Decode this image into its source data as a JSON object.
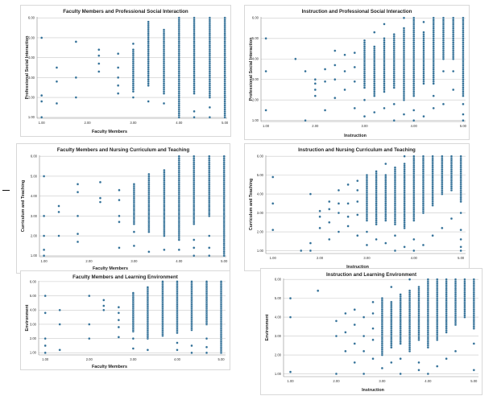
{
  "chart_data": [
    {
      "type": "scatter",
      "title": "Faculty Members and Professional Social Interaction",
      "xlabel": "Faculty Members",
      "ylabel": "Professional Social Interaction",
      "xlim": [
        0.9,
        5.05
      ],
      "ylim": [
        0.95,
        6.05
      ],
      "xticks": [
        "1.00",
        "2.00",
        "3.00",
        "4.00",
        "5.00"
      ],
      "yticks": [
        "1.00",
        "2.00",
        "3.00",
        "4.00",
        "5.00",
        "6.00"
      ],
      "columns": [
        {
          "x": 1.0,
          "y": [
            1.0,
            1.8,
            2.1,
            5.0
          ]
        },
        {
          "x": 1.33,
          "y": [
            1.7,
            2.8,
            3.5
          ]
        },
        {
          "x": 1.75,
          "y": [
            2.0,
            3.0,
            4.8
          ]
        },
        {
          "x": 2.25,
          "y": [
            3.3,
            3.7,
            4.1,
            4.4
          ]
        },
        {
          "x": 2.67,
          "y": [
            2.2,
            2.6,
            3.0,
            3.5,
            4.2
          ]
        },
        {
          "x": 3.0,
          "y": [
            2.0,
            4.7
          ],
          "range": [
            2.3,
            4.4
          ]
        },
        {
          "x": 3.33,
          "y": [
            1.8
          ],
          "range": [
            2.6,
            5.8
          ]
        },
        {
          "x": 3.67,
          "y": [
            1.7
          ],
          "range": [
            2.2,
            5.4
          ]
        },
        {
          "x": 4.0,
          "y": [],
          "range": [
            1.0,
            6.0
          ]
        },
        {
          "x": 4.33,
          "y": [
            1.0,
            1.3
          ],
          "range": [
            2.2,
            6.0
          ]
        },
        {
          "x": 4.67,
          "y": [
            1.0,
            1.5
          ],
          "range": [
            2.0,
            6.0
          ]
        },
        {
          "x": 5.0,
          "y": [],
          "range": [
            1.0,
            6.0
          ]
        }
      ]
    },
    {
      "type": "scatter",
      "title": "Instruction and Professional Social Interaction",
      "xlabel": "Instruction",
      "ylabel": "Professional Social Interaction",
      "xlim": [
        0.9,
        5.05
      ],
      "ylim": [
        0.95,
        6.05
      ],
      "xticks": [
        "1.00",
        "2.00",
        "3.00",
        "4.00",
        "5.00"
      ],
      "yticks": [
        "1.00",
        "2.00",
        "3.00",
        "4.00",
        "5.00",
        "6.00"
      ],
      "columns": [
        {
          "x": 1.0,
          "y": [
            1.5,
            3.4,
            5.0
          ]
        },
        {
          "x": 1.6,
          "y": [
            4.0
          ]
        },
        {
          "x": 1.8,
          "y": [
            1.0,
            3.4
          ]
        },
        {
          "x": 2.0,
          "y": [
            2.2,
            2.5,
            2.8,
            3.0
          ]
        },
        {
          "x": 2.2,
          "y": [
            1.5,
            2.9,
            3.5
          ]
        },
        {
          "x": 2.4,
          "y": [
            2.1,
            3.0,
            3.7,
            4.4
          ]
        },
        {
          "x": 2.6,
          "y": [
            2.5,
            3.4,
            4.2
          ]
        },
        {
          "x": 2.8,
          "y": [
            1.6,
            2.9,
            3.6,
            4.3
          ]
        },
        {
          "x": 3.0,
          "y": [
            1.2,
            2.0
          ],
          "range": [
            2.6,
            4.9
          ]
        },
        {
          "x": 3.2,
          "y": [
            1.4,
            5.3
          ],
          "range": [
            2.2,
            4.6
          ]
        },
        {
          "x": 3.4,
          "y": [
            1.6,
            5.7
          ],
          "range": [
            2.4,
            5.0
          ]
        },
        {
          "x": 3.6,
          "y": [
            1.0,
            1.8
          ],
          "range": [
            2.6,
            5.2
          ]
        },
        {
          "x": 3.8,
          "y": [
            1.3,
            6.0
          ],
          "range": [
            2.0,
            5.5
          ]
        },
        {
          "x": 4.0,
          "y": [
            1.0,
            1.5
          ],
          "range": [
            2.2,
            6.0
          ]
        },
        {
          "x": 4.2,
          "y": [
            1.2,
            5.8
          ],
          "range": [
            2.8,
            5.3
          ]
        },
        {
          "x": 4.4,
          "y": [
            1.6,
            2.2
          ],
          "range": [
            2.8,
            6.0
          ]
        },
        {
          "x": 4.6,
          "y": [
            1.8,
            3.4
          ],
          "range": [
            4.0,
            6.0
          ]
        },
        {
          "x": 4.8,
          "y": [
            2.5,
            3.4
          ],
          "range": [
            4.0,
            6.0
          ]
        },
        {
          "x": 5.0,
          "y": [
            1.0,
            1.3,
            1.8
          ],
          "range": [
            2.2,
            6.0
          ]
        }
      ]
    },
    {
      "type": "scatter",
      "title": "Faculty Members and Nursing Curriculum and Teaching",
      "xlabel": "Faculty Members",
      "ylabel": "Curriculum and Teaching",
      "xlim": [
        0.9,
        5.05
      ],
      "ylim": [
        0.95,
        6.05
      ],
      "xticks": [
        "1.00",
        "2.00",
        "3.00",
        "4.00",
        "5.00"
      ],
      "yticks": [
        "1.00",
        "2.00",
        "3.00",
        "4.00",
        "5.00",
        "6.00"
      ],
      "columns": [
        {
          "x": 1.0,
          "y": [
            1.0,
            1.3,
            2.0,
            3.0,
            5.0
          ]
        },
        {
          "x": 1.33,
          "y": [
            2.0,
            3.2,
            3.5
          ]
        },
        {
          "x": 1.75,
          "y": [
            1.7,
            2.1,
            3.0,
            4.2,
            4.6
          ]
        },
        {
          "x": 2.25,
          "y": [
            3.7,
            3.9,
            4.7
          ]
        },
        {
          "x": 2.67,
          "y": [
            1.4,
            2.7,
            3.0,
            3.8,
            4.3
          ]
        },
        {
          "x": 3.0,
          "y": [
            1.5,
            2.2
          ],
          "range": [
            2.6,
            4.6
          ]
        },
        {
          "x": 3.33,
          "y": [
            1.2
          ],
          "range": [
            2.2,
            5.1
          ]
        },
        {
          "x": 3.67,
          "y": [
            1.3
          ],
          "range": [
            2.0,
            5.3
          ]
        },
        {
          "x": 4.0,
          "y": [
            1.3
          ],
          "range": [
            1.8,
            6.0
          ]
        },
        {
          "x": 4.33,
          "y": [
            1.0,
            1.4,
            1.8
          ],
          "range": [
            2.6,
            6.0
          ]
        },
        {
          "x": 4.67,
          "y": [
            1.0,
            1.4,
            2.0
          ],
          "range": [
            3.0,
            6.0
          ]
        },
        {
          "x": 5.0,
          "y": [],
          "range": [
            1.0,
            6.0
          ]
        }
      ]
    },
    {
      "type": "scatter",
      "title": "Instruction and Nursing Curriculum and Teaching",
      "xlabel": "Instruction",
      "ylabel": "Curriculum and Teaching",
      "xlim": [
        0.85,
        5.1
      ],
      "ylim": [
        0.85,
        6.05
      ],
      "xticks": [
        "1.00",
        "2.00",
        "3.00",
        "4.00",
        "5.00"
      ],
      "yticks": [
        "1.00",
        "2.00",
        "3.00",
        "4.00",
        "5.00",
        "6.00"
      ],
      "columns": [
        {
          "x": 1.0,
          "y": [
            2.1,
            3.5,
            4.9
          ]
        },
        {
          "x": 1.6,
          "y": [
            1.0
          ]
        },
        {
          "x": 1.8,
          "y": [
            1.0,
            1.4,
            4.0
          ]
        },
        {
          "x": 2.0,
          "y": [
            2.2,
            2.8,
            3.1
          ]
        },
        {
          "x": 2.2,
          "y": [
            1.6,
            2.5,
            3.2,
            3.6
          ]
        },
        {
          "x": 2.4,
          "y": [
            2.0,
            3.0,
            3.5,
            4.2
          ]
        },
        {
          "x": 2.6,
          "y": [
            2.3,
            2.8,
            3.5,
            4.5
          ]
        },
        {
          "x": 2.8,
          "y": [
            1.8,
            2.9,
            3.6,
            4.2,
            4.7
          ]
        },
        {
          "x": 3.0,
          "y": [
            1.3,
            2.0
          ],
          "range": [
            2.6,
            5.0
          ]
        },
        {
          "x": 3.2,
          "y": [
            1.6
          ],
          "range": [
            2.4,
            5.2
          ]
        },
        {
          "x": 3.4,
          "y": [
            1.4,
            5.6
          ],
          "range": [
            2.6,
            5.0
          ]
        },
        {
          "x": 3.6,
          "y": [
            1.0,
            1.8
          ],
          "range": [
            2.4,
            5.4
          ]
        },
        {
          "x": 3.8,
          "y": [
            1.2,
            6.0
          ],
          "range": [
            2.2,
            5.6
          ]
        },
        {
          "x": 4.0,
          "y": [
            1.0,
            1.6
          ],
          "range": [
            2.6,
            6.0
          ]
        },
        {
          "x": 4.2,
          "y": [
            1.3
          ],
          "range": [
            3.0,
            6.0
          ]
        },
        {
          "x": 4.4,
          "y": [
            1.8
          ],
          "range": [
            3.4,
            6.0
          ]
        },
        {
          "x": 4.6,
          "y": [
            2.2
          ],
          "range": [
            4.0,
            6.0
          ]
        },
        {
          "x": 4.8,
          "y": [
            2.7
          ],
          "range": [
            4.2,
            6.0
          ]
        },
        {
          "x": 5.0,
          "y": [
            1.0,
            1.2,
            1.6,
            2.1,
            3.0
          ],
          "range": [
            3.6,
            6.0
          ]
        }
      ]
    },
    {
      "type": "scatter",
      "title": "Faculty Members and Learning Environment",
      "xlabel": "Faculty Members",
      "ylabel": "Environment",
      "xlim": [
        0.85,
        5.1
      ],
      "ylim": [
        0.85,
        6.05
      ],
      "xticks": [
        "1.00",
        "2.00",
        "3.00",
        "4.00",
        "5.00"
      ],
      "yticks": [
        "1.00",
        "2.00",
        "3.00",
        "4.00",
        "5.00",
        "6.00"
      ],
      "columns": [
        {
          "x": 1.0,
          "y": [
            1.0,
            1.5,
            2.0,
            3.8,
            5.0
          ]
        },
        {
          "x": 1.33,
          "y": [
            1.2,
            3.0,
            4.0
          ]
        },
        {
          "x": 2.0,
          "y": [
            2.0,
            3.0,
            5.0
          ]
        },
        {
          "x": 2.33,
          "y": [
            4.0,
            4.3,
            4.7
          ]
        },
        {
          "x": 2.67,
          "y": [
            2.1,
            2.8,
            3.3,
            3.8,
            4.2
          ]
        },
        {
          "x": 3.0,
          "y": [
            1.3,
            2.0
          ],
          "range": [
            2.5,
            5.2
          ]
        },
        {
          "x": 3.33,
          "y": [
            1.2
          ],
          "range": [
            2.0,
            5.6
          ]
        },
        {
          "x": 3.67,
          "y": [],
          "range": [
            2.2,
            6.0
          ]
        },
        {
          "x": 4.0,
          "y": [
            1.2,
            1.7
          ],
          "range": [
            2.4,
            6.0
          ]
        },
        {
          "x": 4.33,
          "y": [
            1.0,
            1.5
          ],
          "range": [
            2.6,
            6.0
          ]
        },
        {
          "x": 4.67,
          "y": [
            1.0,
            1.4,
            2.0
          ],
          "range": [
            3.0,
            6.0
          ]
        },
        {
          "x": 5.0,
          "y": [],
          "range": [
            1.0,
            6.0
          ]
        }
      ]
    },
    {
      "type": "scatter",
      "title": "Instruction and Learning Environment",
      "xlabel": "Instruction",
      "ylabel": "Environment",
      "xlim": [
        0.85,
        5.1
      ],
      "ylim": [
        0.85,
        6.05
      ],
      "xticks": [
        "1.00",
        "2.00",
        "3.00",
        "4.00",
        "5.00"
      ],
      "yticks": [
        "1.00",
        "2.00",
        "3.00",
        "4.00",
        "5.00",
        "6.00"
      ],
      "columns": [
        {
          "x": 1.0,
          "y": [
            1.1,
            4.0,
            5.0
          ]
        },
        {
          "x": 1.6,
          "y": [
            5.4
          ]
        },
        {
          "x": 2.0,
          "y": [
            1.0,
            3.0,
            3.8
          ]
        },
        {
          "x": 2.2,
          "y": [
            2.2,
            3.2,
            4.2
          ]
        },
        {
          "x": 2.4,
          "y": [
            1.6,
            2.6,
            3.6,
            4.4
          ]
        },
        {
          "x": 2.6,
          "y": [
            1.0,
            2.2,
            3.0,
            4.0
          ]
        },
        {
          "x": 2.8,
          "y": [
            1.8,
            2.8,
            3.4,
            4.2,
            4.8
          ]
        },
        {
          "x": 3.0,
          "y": [
            1.3
          ],
          "range": [
            2.0,
            5.0
          ]
        },
        {
          "x": 3.2,
          "y": [
            1.6,
            5.6
          ],
          "range": [
            2.4,
            4.8
          ]
        },
        {
          "x": 3.4,
          "y": [
            1.0,
            1.8
          ],
          "range": [
            2.6,
            5.2
          ]
        },
        {
          "x": 3.6,
          "y": [
            6.0
          ],
          "range": [
            2.2,
            5.4
          ]
        },
        {
          "x": 3.8,
          "y": [
            1.2,
            1.6
          ],
          "range": [
            2.8,
            5.6
          ]
        },
        {
          "x": 4.0,
          "y": [
            1.0
          ],
          "range": [
            2.4,
            6.0
          ]
        },
        {
          "x": 4.2,
          "y": [
            1.4
          ],
          "range": [
            2.8,
            6.0
          ]
        },
        {
          "x": 4.4,
          "y": [
            1.8
          ],
          "range": [
            3.2,
            6.0
          ]
        },
        {
          "x": 4.6,
          "y": [
            2.2
          ],
          "range": [
            3.6,
            6.0
          ]
        },
        {
          "x": 4.8,
          "y": [],
          "range": [
            4.0,
            6.0
          ]
        },
        {
          "x": 5.0,
          "y": [
            1.2,
            2.6
          ],
          "range": [
            3.4,
            6.0
          ]
        }
      ]
    }
  ]
}
